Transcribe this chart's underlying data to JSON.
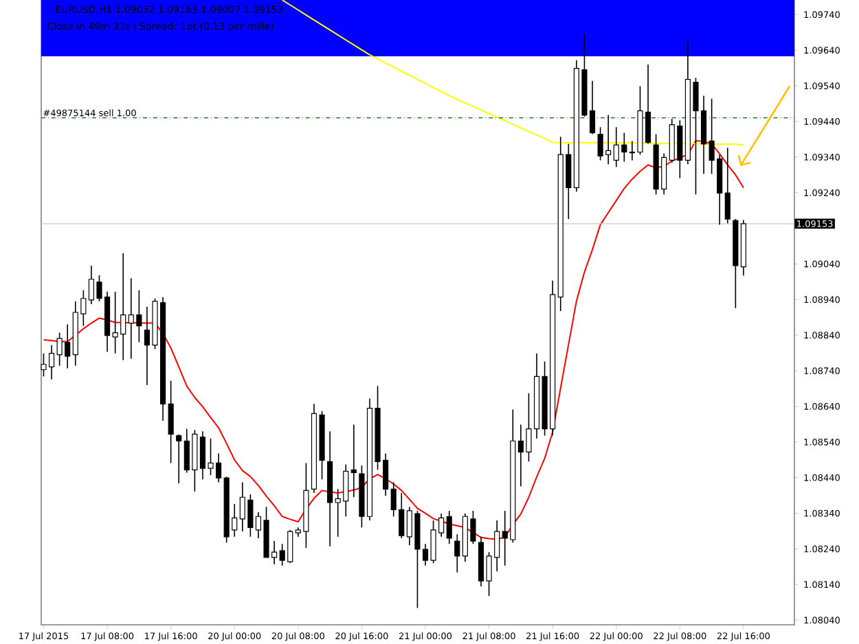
{
  "chart_data": {
    "type": "candlestick",
    "title": "EURUSD,H1  1.09032 1.09163 1.09007 1.09153",
    "subtitle": "Close in 49m 31s | Spread: 1pt (0.13 per mille)",
    "categories": [
      "17 Jul 2015",
      null,
      null,
      null,
      null,
      null,
      null,
      null,
      "17 Jul 08:00",
      null,
      null,
      null,
      null,
      null,
      null,
      null,
      "17 Jul 16:00",
      null,
      null,
      null,
      null,
      null,
      null,
      null,
      "20 Jul 00:00",
      null,
      null,
      null,
      null,
      null,
      null,
      null,
      "20 Jul 08:00",
      null,
      null,
      null,
      null,
      null,
      null,
      null,
      "20 Jul 16:00",
      null,
      null,
      null,
      null,
      null,
      null,
      null,
      "21 Jul 00:00",
      null,
      null,
      null,
      null,
      null,
      null,
      null,
      "21 Jul 08:00",
      null,
      null,
      null,
      null,
      null,
      null,
      null,
      "21 Jul 16:00",
      null,
      null,
      null,
      null,
      null,
      null,
      null,
      "22 Jul 00:00",
      null,
      null,
      null,
      null,
      null,
      null,
      null,
      "22 Jul 08:00",
      null,
      null,
      null,
      null,
      null,
      null,
      null,
      "22 Jul 16:00"
    ],
    "ohlc": [
      [
        1.08743,
        1.08789,
        1.08724,
        1.08758
      ],
      [
        1.08751,
        1.08812,
        1.08716,
        1.08789
      ],
      [
        1.08785,
        1.08847,
        1.08754,
        1.08831
      ],
      [
        1.0882,
        1.0887,
        1.08747,
        1.08781
      ],
      [
        1.08785,
        1.08935,
        1.08754,
        1.08904
      ],
      [
        1.089,
        1.08966,
        1.08866,
        1.08943
      ],
      [
        1.08939,
        1.09035,
        1.08927,
        1.08997
      ],
      [
        1.08989,
        1.09008,
        1.08935,
        1.08943
      ],
      [
        1.08947,
        1.08962,
        1.08793,
        1.08839
      ],
      [
        1.08835,
        1.08962,
        1.08789,
        1.08847
      ],
      [
        1.08843,
        1.0907,
        1.0877,
        1.08897
      ],
      [
        1.08874,
        1.09,
        1.08774,
        1.08897
      ],
      [
        1.08897,
        1.08966,
        1.0882,
        1.08866
      ],
      [
        1.08854,
        1.0892,
        1.087,
        1.08812
      ],
      [
        1.08812,
        1.08943,
        1.08801,
        1.08935
      ],
      [
        1.08931,
        1.08947,
        1.086,
        1.08647
      ],
      [
        1.08647,
        1.08712,
        1.08481,
        1.08562
      ],
      [
        1.08558,
        1.08562,
        1.08424,
        1.08543
      ],
      [
        1.08543,
        1.08577,
        1.08454,
        1.08462
      ],
      [
        1.08462,
        1.08574,
        1.08401,
        1.08562
      ],
      [
        1.08554,
        1.0857,
        1.08435,
        1.08466
      ],
      [
        1.08466,
        1.0855,
        1.08447,
        1.08481
      ],
      [
        1.08481,
        1.08508,
        1.08427,
        1.08439
      ],
      [
        1.08439,
        1.08443,
        1.08258,
        1.08274
      ],
      [
        1.08293,
        1.08366,
        1.08274,
        1.08327
      ],
      [
        1.08324,
        1.08427,
        1.08289,
        1.08385
      ],
      [
        1.08377,
        1.08393,
        1.08274,
        1.083
      ],
      [
        1.08293,
        1.08343,
        1.0827,
        1.08331
      ],
      [
        1.0832,
        1.08358,
        1.08216,
        1.08216
      ],
      [
        1.08216,
        1.08262,
        1.08197,
        1.08231
      ],
      [
        1.08235,
        1.08254,
        1.08193,
        1.08208
      ],
      [
        1.08204,
        1.08293,
        1.082,
        1.08289
      ],
      [
        1.08285,
        1.083,
        1.08274,
        1.08293
      ],
      [
        1.08289,
        1.08481,
        1.08243,
        1.08404
      ],
      [
        1.08408,
        1.08647,
        1.08397,
        1.0862
      ],
      [
        1.08616,
        1.08627,
        1.08435,
        1.08489
      ],
      [
        1.08485,
        1.0857,
        1.08247,
        1.0837
      ],
      [
        1.0837,
        1.08408,
        1.08274,
        1.08381
      ],
      [
        1.08374,
        1.08477,
        1.08331,
        1.08458
      ],
      [
        1.08462,
        1.08589,
        1.08385,
        1.08454
      ],
      [
        1.08451,
        1.08474,
        1.083,
        1.08331
      ],
      [
        1.08331,
        1.08662,
        1.0832,
        1.08635
      ],
      [
        1.08635,
        1.08697,
        1.08462,
        1.08485
      ],
      [
        1.08489,
        1.08508,
        1.08389,
        1.08408
      ],
      [
        1.08408,
        1.08427,
        1.08331,
        1.0835
      ],
      [
        1.0835,
        1.08397,
        1.0827,
        1.08277
      ],
      [
        1.08274,
        1.08358,
        1.0825,
        1.08347
      ],
      [
        1.08339,
        1.08347,
        1.08074,
        1.08239
      ],
      [
        1.08239,
        1.08254,
        1.08193,
        1.08208
      ],
      [
        1.08208,
        1.0832,
        1.082,
        1.08293
      ],
      [
        1.08285,
        1.08339,
        1.08274,
        1.08327
      ],
      [
        1.08331,
        1.08347,
        1.08254,
        1.0827
      ],
      [
        1.08262,
        1.08281,
        1.08174,
        1.0822
      ],
      [
        1.0822,
        1.08339,
        1.08204,
        1.08331
      ],
      [
        1.08324,
        1.08347,
        1.08254,
        1.08262
      ],
      [
        1.08258,
        1.08274,
        1.08135,
        1.0815
      ],
      [
        1.0815,
        1.08231,
        1.08108,
        1.0822
      ],
      [
        1.08216,
        1.0832,
        1.08177,
        1.08289
      ],
      [
        1.08289,
        1.08347,
        1.08193,
        1.0827
      ],
      [
        1.08266,
        1.08631,
        1.08258,
        1.08543
      ],
      [
        1.08543,
        1.08589,
        1.08416,
        1.08512
      ],
      [
        1.08512,
        1.08677,
        1.08485,
        1.08577
      ],
      [
        1.08577,
        1.08789,
        1.0855,
        1.08724
      ],
      [
        1.08724,
        1.08766,
        1.08558,
        1.08577
      ],
      [
        1.08577,
        1.08993,
        1.08558,
        1.08954
      ],
      [
        1.08947,
        1.09397,
        1.08908,
        1.09347
      ],
      [
        1.09347,
        1.09377,
        1.09166,
        1.09254
      ],
      [
        1.09254,
        1.09612,
        1.09243,
        1.09589
      ],
      [
        1.09585,
        1.09685,
        1.09454,
        1.09458
      ],
      [
        1.0947,
        1.09554,
        1.09404,
        1.09408
      ],
      [
        1.09404,
        1.09424,
        1.09331,
        1.09343
      ],
      [
        1.09347,
        1.09458,
        1.0932,
        1.09358
      ],
      [
        1.09331,
        1.09424,
        1.09312,
        1.09374
      ],
      [
        1.09374,
        1.09408,
        1.09327,
        1.09354
      ],
      [
        1.09354,
        1.09385,
        1.09331,
        1.09352
      ],
      [
        1.09354,
        1.09539,
        1.09347,
        1.0947
      ],
      [
        1.09466,
        1.096,
        1.09377,
        1.09381
      ],
      [
        1.09374,
        1.09404,
        1.09235,
        1.0925
      ],
      [
        1.0925,
        1.0935,
        1.09235,
        1.09339
      ],
      [
        1.09331,
        1.09447,
        1.09324,
        1.09431
      ],
      [
        1.09427,
        1.09443,
        1.09281,
        1.09331
      ],
      [
        1.09331,
        1.09666,
        1.0932,
        1.09558
      ],
      [
        1.0955,
        1.09562,
        1.09235,
        1.0947
      ],
      [
        1.0947,
        1.09512,
        1.09293,
        1.09377
      ],
      [
        1.09385,
        1.09504,
        1.09293,
        1.09331
      ],
      [
        1.09335,
        1.09347,
        1.0915,
        1.09239
      ],
      [
        1.09239,
        1.09366,
        1.09154,
        1.09166
      ],
      [
        1.09162,
        1.09166,
        1.08916,
        1.09035
      ],
      [
        1.09032,
        1.09163,
        1.09007,
        1.09153
      ]
    ],
    "series": [
      {
        "type": "line",
        "color": "#ff0000",
        "values": [
          1.08827,
          1.08825,
          1.08822,
          1.08822,
          1.0884,
          1.08858,
          1.08874,
          1.08888,
          1.08882,
          1.08876,
          1.08875,
          1.08875,
          1.08874,
          1.08874,
          1.08874,
          1.08844,
          1.08804,
          1.08751,
          1.08697,
          1.08665,
          1.08639,
          1.08609,
          1.0858,
          1.08536,
          1.0849,
          1.0846,
          1.08443,
          1.08418,
          1.08388,
          1.08361,
          1.08331,
          1.08323,
          1.08316,
          1.08352,
          1.08382,
          1.08404,
          1.084,
          1.08397,
          1.08401,
          1.08405,
          1.08413,
          1.08437,
          1.08449,
          1.08437,
          1.08422,
          1.08404,
          1.08379,
          1.08354,
          1.0834,
          1.08325,
          1.08318,
          1.0831,
          1.08305,
          1.083,
          1.08286,
          1.08272,
          1.08269,
          1.08267,
          1.08273,
          1.08308,
          1.08338,
          1.08385,
          1.08442,
          1.08494,
          1.08568,
          1.08691,
          1.08814,
          1.08936,
          1.09017,
          1.0908,
          1.0915,
          1.09184,
          1.09218,
          1.09252,
          1.09278,
          1.093,
          1.09318,
          1.0931,
          1.09314,
          1.09329,
          1.09338,
          1.09347,
          1.09386,
          1.09384,
          1.09377,
          1.09349,
          1.09318,
          1.0929,
          1.09254
        ]
      },
      {
        "type": "line",
        "color": "#ffff00",
        "values": [
          null,
          null,
          null,
          null,
          null,
          null,
          null,
          null,
          null,
          null,
          null,
          null,
          null,
          null,
          null,
          null,
          null,
          null,
          null,
          null,
          null,
          null,
          null,
          null,
          null,
          null,
          null,
          null,
          null,
          null,
          1.09781,
          1.09767,
          1.09753,
          1.09739,
          1.09725,
          1.09711,
          1.09697,
          1.09683,
          1.09669,
          1.09655,
          1.09641,
          1.09627,
          1.09616,
          1.09604,
          1.09593,
          1.09581,
          1.0957,
          1.09558,
          1.09547,
          1.09535,
          1.09524,
          1.09512,
          1.09502,
          1.09492,
          1.09482,
          1.09472,
          1.09462,
          1.09452,
          1.09442,
          1.09432,
          1.09422,
          1.09412,
          1.09402,
          1.09392,
          1.09381,
          1.0938,
          1.0938,
          1.0938,
          1.0938,
          1.0938,
          1.0938,
          1.0938,
          1.0938,
          1.0938,
          1.0938,
          1.0938,
          1.09378,
          1.09378,
          1.09378,
          1.09378,
          1.09378,
          1.09378,
          1.09378,
          1.09376,
          1.09376,
          1.09376,
          1.09376,
          1.09376,
          1.09374
        ]
      }
    ],
    "ylim": [
      1.08027,
      1.09781
    ],
    "yticks": [
      {
        "value": 1.0974,
        "label": "1.09740"
      },
      {
        "value": 1.0964,
        "label": "1.09640"
      },
      {
        "value": 1.0954,
        "label": "1.09540"
      },
      {
        "value": 1.0944,
        "label": "1.09440"
      },
      {
        "value": 1.0934,
        "label": "1.09340"
      },
      {
        "value": 1.0924,
        "label": "1.09240"
      },
      {
        "value": 1.0904,
        "label": "1.09040"
      },
      {
        "value": 1.0894,
        "label": "1.08940"
      },
      {
        "value": 1.0884,
        "label": "1.08840"
      },
      {
        "value": 1.0874,
        "label": "1.08740"
      },
      {
        "value": 1.0864,
        "label": "1.08640"
      },
      {
        "value": 1.0854,
        "label": "1.08540"
      },
      {
        "value": 1.0844,
        "label": "1.08440"
      },
      {
        "value": 1.0834,
        "label": "1.08340"
      },
      {
        "value": 1.0824,
        "label": "1.08240"
      },
      {
        "value": 1.0814,
        "label": "1.08140"
      },
      {
        "value": 1.0804,
        "label": "1.08040"
      }
    ],
    "ref_lines": [
      {
        "axis": "y",
        "value": 1.0945,
        "label": "#49875144 sell 1.00",
        "color": "#006400",
        "line_style": "dashdot"
      },
      {
        "axis": "y",
        "value": 1.09153,
        "label": "1.09153",
        "color": "#c8c8c8",
        "line_style": "solid"
      }
    ],
    "grid": false
  }
}
